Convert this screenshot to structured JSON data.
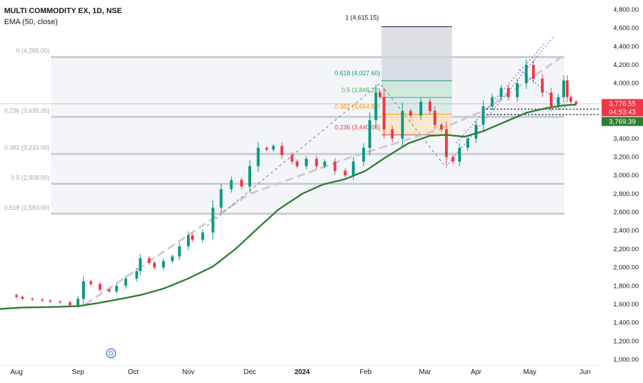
{
  "chart_data": {
    "type": "candlestick",
    "title": "MULTI COMMODITY EX, 1D, NSE",
    "indicator": "EMA (50, close)",
    "ylim": [
      1000,
      4800
    ],
    "y_ticks": [
      "4,800.00",
      "4,600.00",
      "4,400.00",
      "4,200.00",
      "4,000.00",
      "3,800.00",
      "3,600.00",
      "3,400.00",
      "3,200.00",
      "3,000.00",
      "2,800.00",
      "2,600.00",
      "2,400.00",
      "2,200.00",
      "2,000.00",
      "1,800.00",
      "1,600.00",
      "1,400.00",
      "1,200.00",
      "1,000.00"
    ],
    "x_labels": [
      "Aug",
      "Sep",
      "Oct",
      "Nov",
      "Dec",
      "2024",
      "Feb",
      "Mar",
      "Apr",
      "May",
      "Jun"
    ],
    "price_labels": {
      "last_price": "3,776.55",
      "countdown": "04:53:43",
      "ema_value": "3,769.39"
    },
    "fib_levels_left": [
      {
        "label": "0 (4,285.00)",
        "value": 4285
      },
      {
        "label": "0.236 (3,635.05)",
        "value": 3635.05
      },
      {
        "label": "0.382 (3,233.00)",
        "value": 3233
      },
      {
        "label": "0.5 (2,908.00)",
        "value": 2908
      },
      {
        "label": "0.618 (2,583.00)",
        "value": 2583
      }
    ],
    "fib_levels_right": [
      {
        "label": "1 (4,615.15)",
        "value": 4615.15
      },
      {
        "label": "0.618 (4,027.60)",
        "value": 4027.6
      },
      {
        "label": "0.5 (3,846.10)",
        "value": 3846.1
      },
      {
        "label": "0.382 (3,664.60)",
        "value": 3664.6
      },
      {
        "label": "0.236 (3,440.05)",
        "value": 3440.05
      }
    ],
    "close_series": [
      {
        "date": "2023-07-27",
        "close": 1700
      },
      {
        "date": "2023-08-01",
        "close": 1680
      },
      {
        "date": "2023-08-04",
        "close": 1660
      },
      {
        "date": "2023-08-09",
        "close": 1650
      },
      {
        "date": "2023-08-14",
        "close": 1640
      },
      {
        "date": "2023-08-18",
        "close": 1630
      },
      {
        "date": "2023-08-23",
        "close": 1620
      },
      {
        "date": "2023-08-28",
        "close": 1590
      },
      {
        "date": "2023-09-01",
        "close": 1660
      },
      {
        "date": "2023-09-04",
        "close": 1850
      },
      {
        "date": "2023-09-08",
        "close": 1820
      },
      {
        "date": "2023-09-13",
        "close": 1760
      },
      {
        "date": "2023-09-18",
        "close": 1740
      },
      {
        "date": "2023-09-22",
        "close": 1800
      },
      {
        "date": "2023-09-27",
        "close": 1880
      },
      {
        "date": "2023-10-03",
        "close": 1960
      },
      {
        "date": "2023-10-05",
        "close": 2100
      },
      {
        "date": "2023-10-10",
        "close": 2050
      },
      {
        "date": "2023-10-13",
        "close": 2000
      },
      {
        "date": "2023-10-18",
        "close": 2070
      },
      {
        "date": "2023-10-23",
        "close": 2120
      },
      {
        "date": "2023-10-27",
        "close": 2230
      },
      {
        "date": "2023-11-01",
        "close": 2350
      },
      {
        "date": "2023-11-03",
        "close": 2300
      },
      {
        "date": "2023-11-08",
        "close": 2380
      },
      {
        "date": "2023-11-13",
        "close": 2650
      },
      {
        "date": "2023-11-17",
        "close": 2850
      },
      {
        "date": "2023-11-22",
        "close": 2950
      },
      {
        "date": "2023-11-27",
        "close": 2880
      },
      {
        "date": "2023-12-01",
        "close": 3100
      },
      {
        "date": "2023-12-06",
        "close": 3300
      },
      {
        "date": "2023-12-11",
        "close": 3280
      },
      {
        "date": "2023-12-15",
        "close": 3320
      },
      {
        "date": "2023-12-20",
        "close": 3220
      },
      {
        "date": "2023-12-26",
        "close": 3150
      },
      {
        "date": "2023-12-29",
        "close": 3100
      },
      {
        "date": "2024-01-03",
        "close": 3180
      },
      {
        "date": "2024-01-08",
        "close": 3100
      },
      {
        "date": "2024-01-12",
        "close": 3150
      },
      {
        "date": "2024-01-17",
        "close": 3050
      },
      {
        "date": "2024-01-22",
        "close": 3000
      },
      {
        "date": "2024-01-26",
        "close": 3150
      },
      {
        "date": "2024-01-31",
        "close": 3300
      },
      {
        "date": "2024-02-03",
        "close": 3600
      },
      {
        "date": "2024-02-06",
        "close": 3900
      },
      {
        "date": "2024-02-08",
        "close": 3850
      },
      {
        "date": "2024-02-10",
        "close": 3500
      },
      {
        "date": "2024-02-14",
        "close": 3400
      },
      {
        "date": "2024-02-19",
        "close": 3700
      },
      {
        "date": "2024-02-23",
        "close": 3650
      },
      {
        "date": "2024-02-28",
        "close": 3800
      },
      {
        "date": "2024-03-04",
        "close": 3700
      },
      {
        "date": "2024-03-07",
        "close": 3550
      },
      {
        "date": "2024-03-11",
        "close": 3500
      },
      {
        "date": "2024-03-14",
        "close": 3200
      },
      {
        "date": "2024-03-18",
        "close": 3150
      },
      {
        "date": "2024-03-22",
        "close": 3300
      },
      {
        "date": "2024-03-27",
        "close": 3400
      },
      {
        "date": "2024-04-01",
        "close": 3550
      },
      {
        "date": "2024-04-05",
        "close": 3750
      },
      {
        "date": "2024-04-10",
        "close": 3850
      },
      {
        "date": "2024-04-15",
        "close": 3950
      },
      {
        "date": "2024-04-19",
        "close": 3850
      },
      {
        "date": "2024-04-24",
        "close": 4000
      },
      {
        "date": "2024-04-29",
        "close": 4200
      },
      {
        "date": "2024-05-03",
        "close": 4050
      },
      {
        "date": "2024-05-08",
        "close": 3900
      },
      {
        "date": "2024-05-13",
        "close": 3750
      },
      {
        "date": "2024-05-17",
        "close": 3850
      },
      {
        "date": "2024-05-20",
        "close": 4030
      },
      {
        "date": "2024-05-22",
        "close": 3850
      },
      {
        "date": "2024-05-24",
        "close": 3800
      },
      {
        "date": "2024-05-27",
        "close": 3777
      }
    ],
    "ema_series": [
      {
        "date": "2023-07-27",
        "value": 1550
      },
      {
        "date": "2023-08-04",
        "value": 1565
      },
      {
        "date": "2023-08-18",
        "value": 1570
      },
      {
        "date": "2023-09-01",
        "value": 1580
      },
      {
        "date": "2023-09-11",
        "value": 1610
      },
      {
        "date": "2023-09-22",
        "value": 1650
      },
      {
        "date": "2023-10-05",
        "value": 1700
      },
      {
        "date": "2023-10-18",
        "value": 1770
      },
      {
        "date": "2023-11-01",
        "value": 1880
      },
      {
        "date": "2023-11-13",
        "value": 2010
      },
      {
        "date": "2023-11-24",
        "value": 2200
      },
      {
        "date": "2023-12-06",
        "value": 2430
      },
      {
        "date": "2023-12-18",
        "value": 2630
      },
      {
        "date": "2024-01-01",
        "value": 2800
      },
      {
        "date": "2024-01-11",
        "value": 2900
      },
      {
        "date": "2024-01-22",
        "value": 2960
      },
      {
        "date": "2024-02-01",
        "value": 3050
      },
      {
        "date": "2024-02-11",
        "value": 3200
      },
      {
        "date": "2024-02-22",
        "value": 3350
      },
      {
        "date": "2024-03-04",
        "value": 3430
      },
      {
        "date": "2024-03-14",
        "value": 3440
      },
      {
        "date": "2024-03-25",
        "value": 3420
      },
      {
        "date": "2024-04-05",
        "value": 3480
      },
      {
        "date": "2024-04-17",
        "value": 3580
      },
      {
        "date": "2024-04-29",
        "value": 3680
      },
      {
        "date": "2024-05-10",
        "value": 3730
      },
      {
        "date": "2024-05-20",
        "value": 3760
      },
      {
        "date": "2024-05-27",
        "value": 3769
      }
    ],
    "colors": {
      "up": "#089981",
      "down": "#f23645",
      "ema": "#2e7d32",
      "fib_band": "#c9ccd3"
    }
  }
}
